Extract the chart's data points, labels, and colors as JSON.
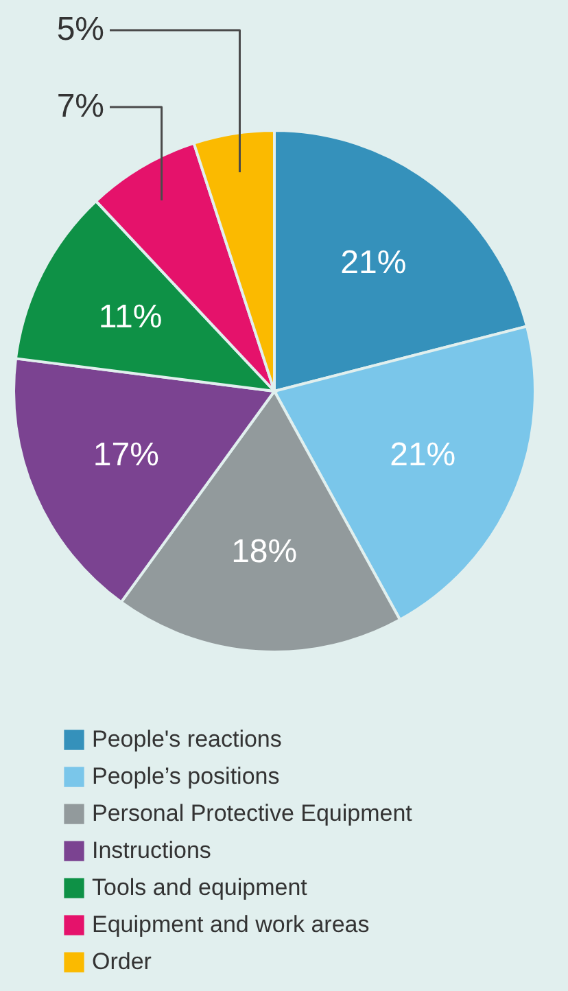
{
  "chart_data": {
    "type": "pie",
    "categories": [
      "People's reactions",
      "People’s positions",
      "Personal Protective Equipment",
      "Instructions",
      "Tools and equipment",
      "Equipment and work areas",
      "Order"
    ],
    "values": [
      21,
      21,
      18,
      17,
      11,
      7,
      5
    ],
    "colors": [
      "#3591bb",
      "#7ac6ea",
      "#929a9c",
      "#7b4391",
      "#0e9146",
      "#e5126b",
      "#fbba00"
    ],
    "value_labels": [
      "21%",
      "21%",
      "18%",
      "17%",
      "11%",
      "7%",
      "5%"
    ],
    "legend": "bottom"
  }
}
